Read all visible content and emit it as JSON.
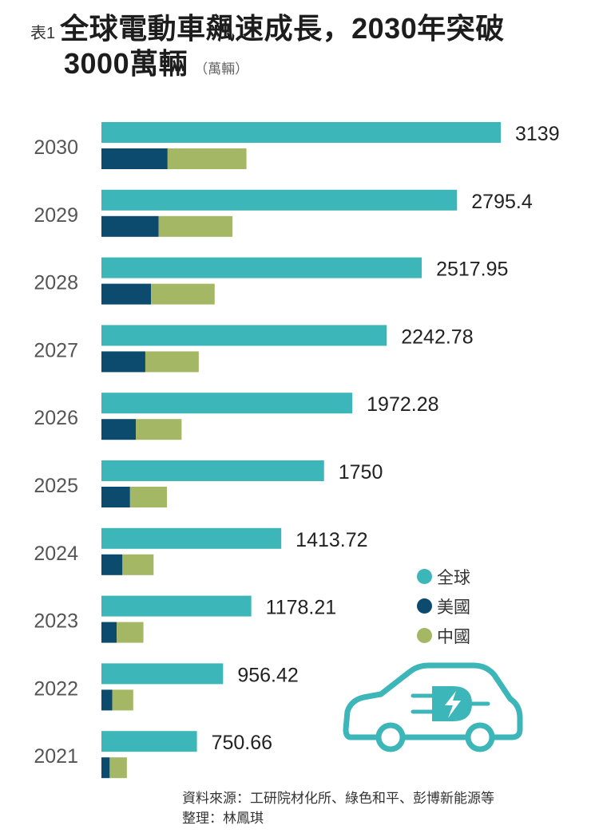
{
  "header": {
    "figure_label": "表1",
    "title_line1": "全球電動車飆速成長，2030年突破",
    "title_line2": "3000萬輛",
    "unit": "（萬輛）"
  },
  "legend": [
    {
      "name": "全球",
      "color": "#3cb6b8"
    },
    {
      "name": "美國",
      "color": "#0c4a6e"
    },
    {
      "name": "中國",
      "color": "#a3b765"
    }
  ],
  "footer": {
    "source": "資料來源：工研院材化所、綠色和平、彭博新能源等",
    "compiled_by": "整理：林鳳琪"
  },
  "illustration": {
    "car_icon": "electric-car-plug-icon",
    "color": "#3cb6b8"
  },
  "chart_data": {
    "type": "bar",
    "orientation": "horizontal",
    "title": "全球電動車飆速成長，2030年突破3000萬輛",
    "unit": "萬輛",
    "categories": [
      "2030",
      "2029",
      "2028",
      "2027",
      "2026",
      "2025",
      "2024",
      "2023",
      "2022",
      "2021"
    ],
    "global_labels": [
      "3139",
      "2795.4",
      "2517.95",
      "2242.78",
      "1972.28",
      "1750",
      "1413.72",
      "1178.21",
      "956.42",
      "750.66"
    ],
    "series": [
      {
        "name": "全球",
        "color": "#3cb6b8",
        "values": [
          3139,
          2795.4,
          2517.95,
          2242.78,
          1972.28,
          1750,
          1413.72,
          1178.21,
          956.42,
          750.66
        ]
      },
      {
        "name": "美國",
        "color": "#0c4a6e",
        "values": [
          520,
          450,
          390,
          345,
          270,
          225,
          165,
          120,
          85,
          65
        ]
      },
      {
        "name": "中國",
        "color": "#a3b765",
        "values": [
          620,
          580,
          500,
          420,
          360,
          290,
          245,
          210,
          165,
          135
        ]
      }
    ],
    "stacked_series": [
      "美國",
      "中國"
    ],
    "xlim": [
      0,
      3139
    ],
    "grid": false,
    "legend_position": "right"
  }
}
